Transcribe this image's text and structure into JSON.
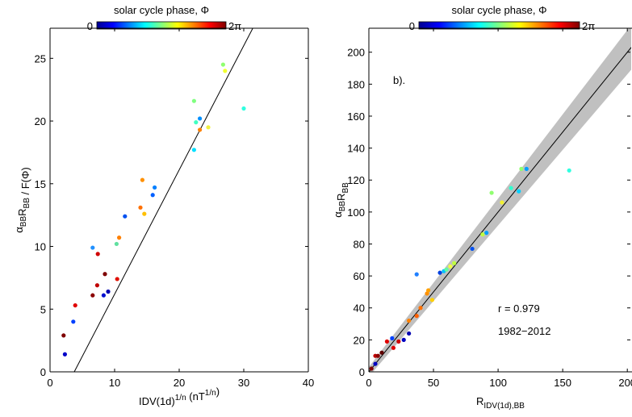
{
  "chart_data": [
    {
      "type": "scatter",
      "colorbar": {
        "title": "solar cycle phase, Φ",
        "min_label": "0",
        "max_label": "2π",
        "colors": [
          "#00008f",
          "#0000ff",
          "#0080ff",
          "#00ffff",
          "#80ff80",
          "#ffff00",
          "#ff8000",
          "#ff0000",
          "#800000"
        ]
      },
      "x_label": [
        {
          "t": "IDV(1d)",
          "sup": "1/n"
        },
        {
          "t": " (nT",
          "sup": "1/n"
        },
        {
          "t": ")"
        }
      ],
      "y_label": [
        {
          "t": "α",
          "sub": "BB"
        },
        {
          "t": "R",
          "sub": "BB"
        },
        {
          "t": " / F(Φ)"
        }
      ],
      "xlim": [
        0,
        40
      ],
      "ylim": [
        0,
        27.4
      ],
      "xticks": [
        0,
        10,
        20,
        30,
        40
      ],
      "yticks": [
        0,
        5,
        10,
        15,
        20,
        25
      ],
      "x": [
        2.3,
        2.1,
        3.6,
        3.9,
        6.6,
        7.3,
        8.5,
        8.3,
        9.0,
        10.4,
        6.6,
        7.4,
        10.7,
        10.3,
        11.6,
        14.0,
        14.6,
        14.3,
        15.9,
        16.2,
        22.3,
        22.6,
        23.2,
        22.3,
        24.5,
        23.2,
        30.0,
        26.8,
        27.1
      ],
      "values": [
        1.4,
        2.9,
        4.0,
        5.3,
        6.1,
        6.9,
        7.8,
        6.1,
        6.4,
        7.4,
        9.9,
        9.4,
        10.7,
        10.2,
        12.4,
        13.1,
        12.6,
        15.3,
        14.1,
        14.7,
        17.7,
        19.9,
        20.2,
        21.6,
        19.5,
        19.3,
        21.0,
        24.5,
        24.0
      ],
      "colors": [
        "#0000c8",
        "#7f0000",
        "#0040ff",
        "#e00000",
        "#8b0000",
        "#c00000",
        "#7f0000",
        "#0010d0",
        "#0000b0",
        "#e01000",
        "#2090ff",
        "#d00000",
        "#ff8000",
        "#60e0a0",
        "#0050f0",
        "#ff7000",
        "#ffc000",
        "#ff9000",
        "#0060ff",
        "#0080ff",
        "#00e0ff",
        "#40ffc0",
        "#0090ff",
        "#80ff80",
        "#f0f040",
        "#ff8000",
        "#30ffe0",
        "#90ff70",
        "#f0ff30"
      ],
      "fit_line": {
        "x": [
          3.75,
          31.4
        ],
        "y": [
          0,
          27.4
        ],
        "color": "#000000"
      }
    },
    {
      "type": "scatter",
      "colorbar": {
        "title": "solar cycle phase, Φ",
        "min_label": "0",
        "max_label": "2π",
        "colors": [
          "#00008f",
          "#0000ff",
          "#0080ff",
          "#00ffff",
          "#80ff80",
          "#ffff00",
          "#ff8000",
          "#ff0000",
          "#800000"
        ]
      },
      "x_label": [
        {
          "t": "R",
          "sub": "IDV(1d),BB"
        }
      ],
      "y_label": [
        {
          "t": "α",
          "sub": "BB"
        },
        {
          "t": "R",
          "sub": "BB"
        }
      ],
      "annotations": [
        "b).",
        "r = 0.979",
        "1982−2012"
      ],
      "xlim": [
        0,
        203
      ],
      "ylim": [
        0,
        215
      ],
      "xticks": [
        0,
        50,
        100,
        150,
        200
      ],
      "yticks": [
        0,
        20,
        40,
        60,
        80,
        100,
        120,
        140,
        160,
        180,
        200
      ],
      "x": [
        2,
        5,
        7,
        5,
        10,
        14,
        18,
        19,
        23,
        27,
        31,
        31,
        37,
        40,
        37,
        45,
        46,
        49,
        55,
        58,
        60,
        63,
        66,
        80,
        88,
        91,
        95,
        103,
        110,
        116,
        118,
        122,
        155
      ],
      "values": [
        2,
        10,
        10,
        5,
        12,
        19,
        21,
        15,
        19,
        20,
        24,
        32,
        35,
        40,
        61,
        49,
        51,
        45,
        62,
        63,
        64,
        66,
        68,
        77,
        86,
        87,
        112,
        106,
        115,
        113,
        127,
        127,
        126
      ],
      "colors": [
        "#7f0000",
        "#c00000",
        "#8b0000",
        "#0000c0",
        "#600000",
        "#e00000",
        "#0040ff",
        "#e00000",
        "#d00000",
        "#0000c0",
        "#0000b0",
        "#ff8000",
        "#ff6000",
        "#ff7000",
        "#2080ff",
        "#ff9000",
        "#ffa000",
        "#ffd000",
        "#0040e0",
        "#00c0ff",
        "#60ffa0",
        "#f0ff40",
        "#c0ff40",
        "#0050f0",
        "#c0ff40",
        "#00a0ff",
        "#90ff70",
        "#f0f030",
        "#30ffd0",
        "#00d0ff",
        "#90ff70",
        "#00a0ff",
        "#30ffe0"
      ],
      "fit_line": {
        "x": [
          0,
          203
        ],
        "y": [
          0,
          203
        ],
        "color": "#000000"
      },
      "band": {
        "x": [
          0,
          203
        ],
        "lower": [
          -3,
          189
        ],
        "upper": [
          3,
          217
        ],
        "color": "#c0c0c0"
      }
    }
  ]
}
